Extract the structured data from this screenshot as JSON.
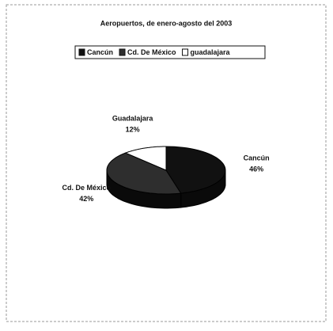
{
  "chart_data": {
    "type": "pie",
    "title": "Aeropuertos, de enero-agosto del 2003",
    "categories": [
      "Cancún",
      "Cd. De México",
      "guadalajara"
    ],
    "point_labels": [
      "Cancún",
      "Cd. De México",
      "Guadalajara"
    ],
    "values": [
      46,
      42,
      12
    ],
    "value_labels": [
      "46%",
      "42%",
      "12%"
    ],
    "colors": [
      "#111111",
      "#2e2e2e",
      "#ffffff"
    ],
    "legend": "top",
    "style": "3d"
  }
}
